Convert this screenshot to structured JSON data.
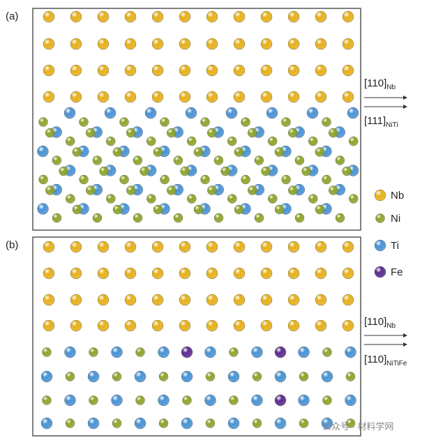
{
  "panels": [
    {
      "label": "(a)",
      "top": {
        "index": "[110]",
        "sub": "Nb"
      },
      "bottom": {
        "index": "[111]",
        "sub": "NiTi"
      }
    },
    {
      "label": "(b)",
      "top": {
        "index": "[110]",
        "sub": "Nb"
      },
      "bottom": {
        "index": "[110]",
        "sub": "NiTiFe"
      }
    }
  ],
  "legend": [
    {
      "name": "Nb",
      "color": "#e6b01c"
    },
    {
      "name": "Ni",
      "color": "#8ea52c"
    },
    {
      "name": "Ti",
      "color": "#4b93d4"
    },
    {
      "name": "Fe",
      "color": "#5b2d8e"
    }
  ],
  "watermark": "公众号 · 材料学网"
}
